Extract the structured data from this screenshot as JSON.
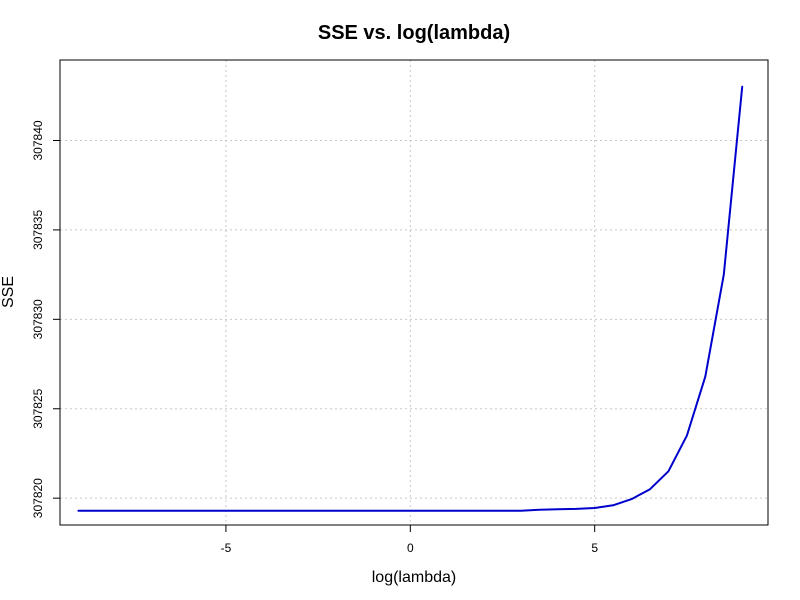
{
  "chart_data": {
    "type": "line",
    "title": "SSE vs. log(lambda)",
    "xlabel": "log(lambda)",
    "ylabel": "SSE",
    "xlim": [
      -9.5,
      9.7
    ],
    "ylim": [
      307818.5,
      307844.5
    ],
    "x_ticks": [
      -5,
      0,
      5
    ],
    "x_tick_labels": [
      "-5",
      "0",
      "5"
    ],
    "y_ticks": [
      307820,
      307825,
      307830,
      307835,
      307840
    ],
    "y_tick_labels": [
      "307820",
      "307825",
      "307830",
      "307835",
      "307840"
    ],
    "grid": true,
    "series": [
      {
        "color": "#0000cd",
        "x": [
          -9.0,
          -8.0,
          -7.0,
          -6.0,
          -5.0,
          -4.0,
          -3.0,
          -2.0,
          -1.0,
          0.0,
          1.0,
          2.0,
          3.0,
          3.5,
          4.0,
          4.5,
          5.0,
          5.5,
          6.0,
          6.5,
          7.0,
          7.5,
          8.0,
          8.5,
          9.0
        ],
        "y": [
          307819.3,
          307819.3,
          307819.3,
          307819.3,
          307819.3,
          307819.3,
          307819.3,
          307819.3,
          307819.3,
          307819.3,
          307819.3,
          307819.3,
          307819.3,
          307819.35,
          307819.38,
          307819.4,
          307819.45,
          307819.6,
          307819.95,
          307820.5,
          307821.5,
          307823.5,
          307826.8,
          307832.5,
          307843.0
        ]
      }
    ]
  }
}
